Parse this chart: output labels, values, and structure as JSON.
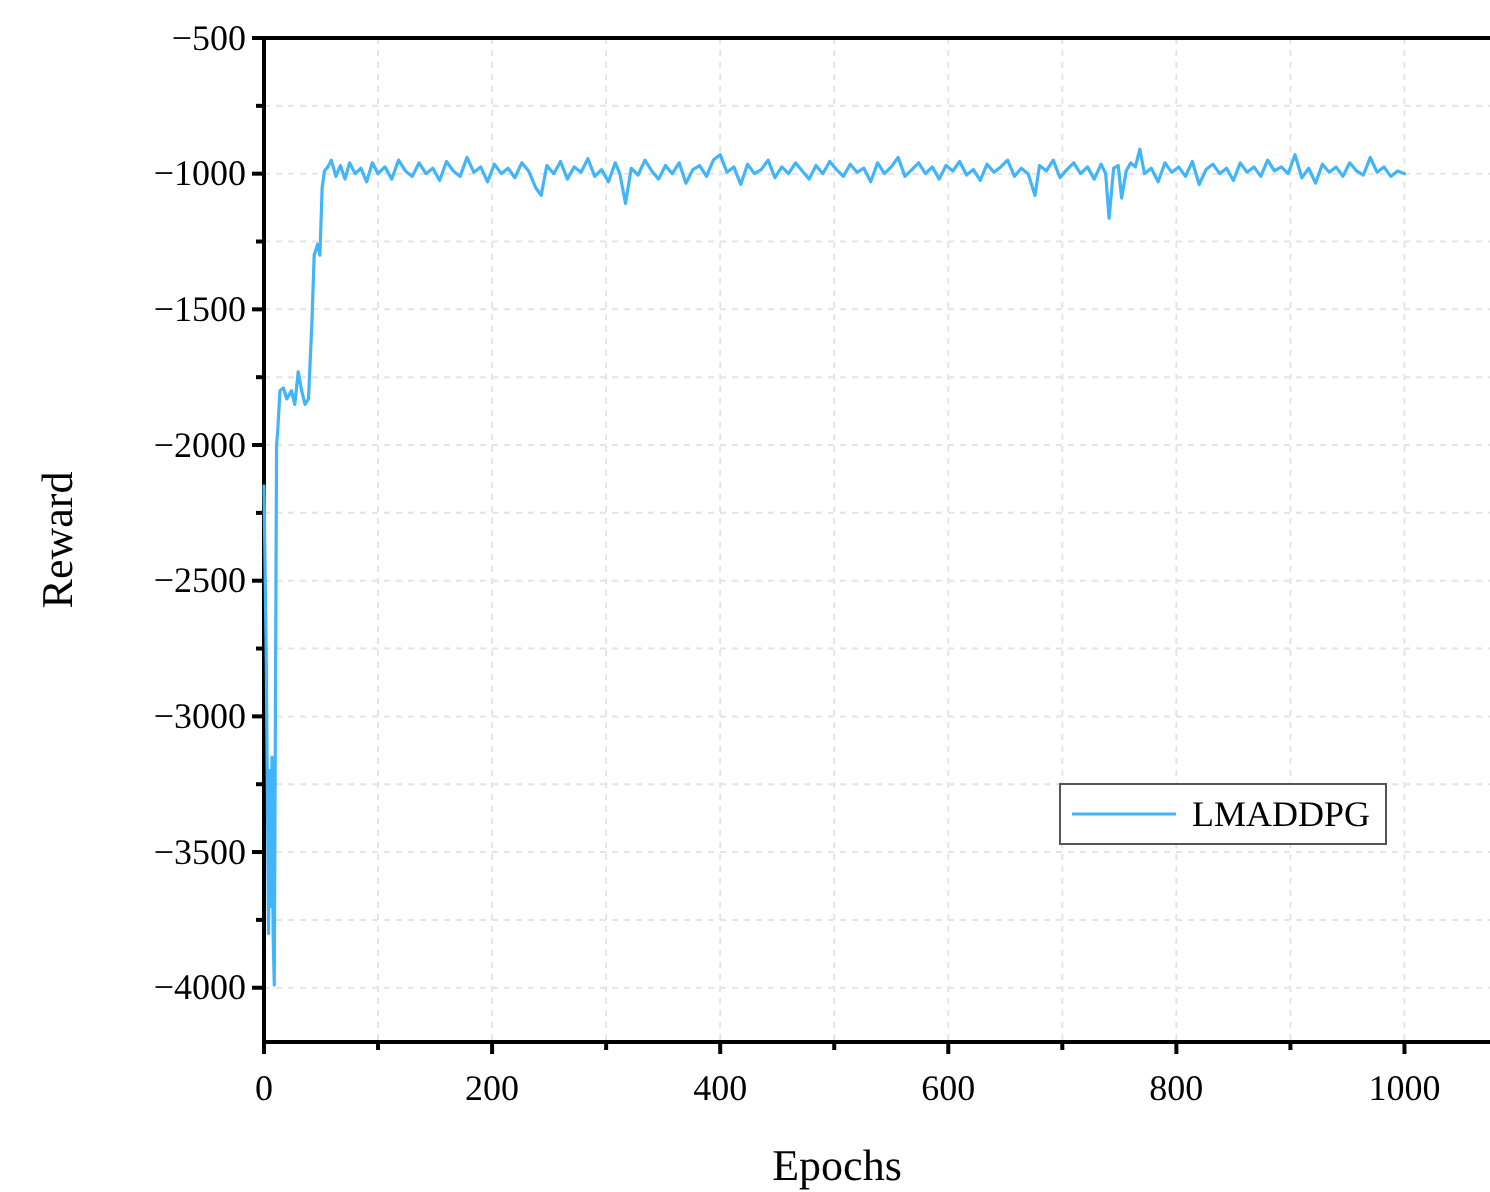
{
  "chart_data": {
    "type": "line",
    "xlabel": "Epochs",
    "ylabel": "Reward",
    "xlim": [
      0,
      1075
    ],
    "ylim": [
      -4200,
      -500
    ],
    "xticks": [
      0,
      {
        "value": 100,
        "label": null
      },
      200,
      {
        "value": 300,
        "label": null
      },
      400,
      {
        "value": 500,
        "label": null
      },
      600,
      {
        "value": 700,
        "label": null
      },
      800,
      {
        "value": 900,
        "label": null
      },
      1000
    ],
    "yticks": [
      -4000,
      {
        "value": -3750,
        "label": null
      },
      -3500,
      {
        "value": -3250,
        "label": null
      },
      -3000,
      {
        "value": -2750,
        "label": null
      },
      -2500,
      {
        "value": -2250,
        "label": null
      },
      -2000,
      {
        "value": -1750,
        "label": null
      },
      -1500,
      {
        "value": -1250,
        "label": null
      },
      -1000,
      {
        "value": -750,
        "label": null
      },
      -500
    ],
    "grid": true,
    "legend": "bottom right",
    "line_style": "solid",
    "marker": "none",
    "series": [
      {
        "name": "LMADDPG",
        "color": "#42b4f9",
        "x": [
          0,
          2,
          4,
          5,
          6,
          7,
          8,
          9,
          10,
          11,
          12,
          14,
          17,
          20,
          24,
          27,
          30,
          33,
          36,
          39,
          42,
          44,
          47,
          49,
          51,
          53,
          56,
          59,
          63,
          67,
          71,
          75,
          80,
          85,
          90,
          95,
          100,
          106,
          112,
          118,
          124,
          130,
          136,
          142,
          148,
          154,
          160,
          166,
          172,
          178,
          184,
          190,
          196,
          202,
          208,
          214,
          220,
          226,
          232,
          238,
          243,
          248,
          254,
          260,
          266,
          272,
          278,
          284,
          290,
          296,
          302,
          308,
          312,
          317,
          322,
          328,
          334,
          340,
          346,
          352,
          358,
          364,
          370,
          376,
          382,
          388,
          394,
          400,
          406,
          412,
          418,
          424,
          430,
          436,
          442,
          448,
          454,
          460,
          466,
          472,
          478,
          484,
          490,
          496,
          502,
          508,
          514,
          520,
          526,
          532,
          538,
          544,
          550,
          556,
          562,
          568,
          574,
          580,
          586,
          592,
          598,
          604,
          610,
          616,
          622,
          628,
          634,
          640,
          646,
          652,
          658,
          664,
          670,
          676,
          680,
          686,
          692,
          698,
          704,
          710,
          716,
          722,
          728,
          734,
          738,
          741,
          745,
          749,
          752,
          756,
          760,
          764,
          768,
          772,
          778,
          784,
          790,
          796,
          802,
          808,
          814,
          820,
          826,
          832,
          838,
          844,
          850,
          856,
          862,
          868,
          874,
          880,
          886,
          892,
          898,
          904,
          910,
          916,
          922,
          928,
          934,
          940,
          946,
          952,
          958,
          964,
          970,
          976,
          982,
          988,
          994,
          1000
        ],
        "values": [
          -2150,
          -2800,
          -3800,
          -3200,
          -3700,
          -3150,
          -3800,
          -3990,
          -3000,
          -2000,
          -1950,
          -1800,
          -1790,
          -1830,
          -1800,
          -1850,
          -1730,
          -1800,
          -1850,
          -1830,
          -1550,
          -1300,
          -1260,
          -1300,
          -1050,
          -990,
          -975,
          -950,
          -1010,
          -970,
          -1020,
          -960,
          -1000,
          -980,
          -1030,
          -960,
          -1000,
          -975,
          -1020,
          -950,
          -990,
          -1010,
          -960,
          -1000,
          -980,
          -1025,
          -955,
          -990,
          -1010,
          -940,
          -995,
          -975,
          -1030,
          -965,
          -1000,
          -980,
          -1015,
          -960,
          -990,
          -1050,
          -1080,
          -970,
          -1000,
          -955,
          -1020,
          -975,
          -995,
          -945,
          -1010,
          -985,
          -1030,
          -960,
          -1000,
          -1110,
          -980,
          -1005,
          -950,
          -990,
          -1020,
          -970,
          -1000,
          -960,
          -1035,
          -985,
          -970,
          -1010,
          -950,
          -930,
          -995,
          -975,
          -1040,
          -965,
          -1000,
          -985,
          -950,
          -1015,
          -975,
          -1000,
          -960,
          -990,
          -1020,
          -970,
          -1000,
          -955,
          -985,
          -1010,
          -965,
          -995,
          -980,
          -1030,
          -960,
          -1000,
          -975,
          -940,
          -1010,
          -985,
          -960,
          -1000,
          -975,
          -1020,
          -970,
          -990,
          -955,
          -1005,
          -985,
          -1025,
          -965,
          -995,
          -975,
          -950,
          -1010,
          -980,
          -1000,
          -1080,
          -970,
          -990,
          -950,
          -1015,
          -985,
          -960,
          -1000,
          -975,
          -1020,
          -965,
          -1000,
          -1165,
          -980,
          -970,
          -1090,
          -990,
          -960,
          -975,
          -910,
          -1000,
          -980,
          -1030,
          -960,
          -995,
          -975,
          -1010,
          -955,
          -1040,
          -985,
          -965,
          -1000,
          -980,
          -1025,
          -960,
          -995,
          -975,
          -1010,
          -950,
          -990,
          -975,
          -1000,
          -930,
          -1015,
          -980,
          -1035,
          -965,
          -995,
          -975,
          -1010,
          -960,
          -990,
          -1005,
          -940,
          -995,
          -975,
          -1010,
          -990,
          -1000
        ]
      }
    ]
  }
}
